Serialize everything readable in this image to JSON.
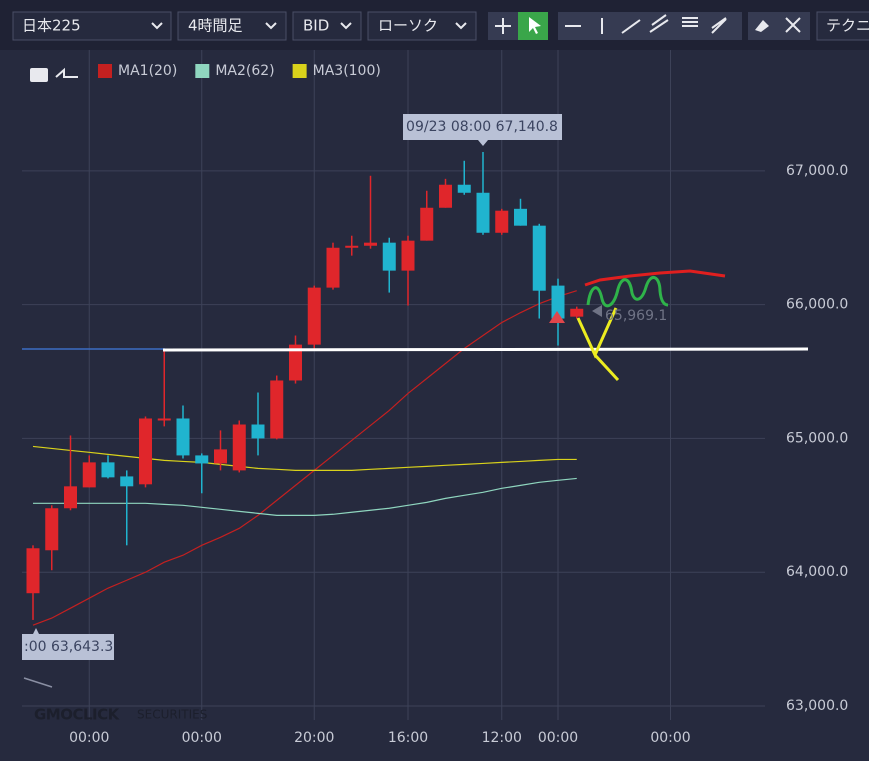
{
  "toolbar": {
    "symbol": "日本225",
    "timeframe": "4時間足",
    "price_type": "BID",
    "chart_style": "ローソク",
    "technical": "テクニ"
  },
  "watermark": {
    "brand": "GMOCLICK",
    "sub": "SECURITIES"
  },
  "chart_data": {
    "type": "candlestick",
    "categories": [
      null,
      null,
      null,
      "00:00",
      null,
      null,
      null,
      null,
      null,
      "00:00",
      null,
      null,
      null,
      null,
      null,
      "20:00",
      null,
      null,
      null,
      null,
      "16:00",
      null,
      null,
      null,
      null,
      "12:00",
      null,
      null,
      "00:00",
      null,
      null,
      null,
      null,
      null,
      "00:00",
      null,
      null,
      null
    ],
    "ohlc": {
      "up_color": "#e0262b",
      "down_color": "#20b4cf",
      "open": [
        63843,
        64164,
        64478,
        64634,
        64821,
        64716,
        64657,
        65134,
        65149,
        64873,
        64813,
        64761,
        65104,
        65000,
        65433,
        65701,
        66127,
        66425,
        66440,
        66463,
        66254,
        66478,
        66724,
        66896,
        66836,
        66537,
        66716,
        66590,
        66142,
        65910,
        null,
        null,
        null,
        null,
        null,
        null,
        null,
        null
      ],
      "high": [
        64201,
        64500,
        65022,
        64873,
        64873,
        64761,
        65164,
        65657,
        65246,
        64888,
        65060,
        65134,
        65343,
        65470,
        65769,
        66142,
        66463,
        66515,
        66963,
        66500,
        66515,
        66851,
        66940,
        67075,
        67140.8,
        66716,
        66791,
        66604,
        66194,
        65985,
        null,
        null,
        null,
        null,
        null,
        null,
        null,
        null
      ],
      "low": [
        63643.3,
        64015,
        64463,
        64634,
        64701,
        64201,
        64634,
        65090,
        64850,
        64590,
        64761,
        64746,
        64873,
        64993,
        65410,
        65657,
        66112,
        66366,
        66418,
        66090,
        65993,
        66478,
        66724,
        66821,
        66522,
        66522,
        66590,
        65896,
        65694,
        65896,
        null,
        null,
        null,
        null,
        null,
        null,
        null,
        null
      ],
      "close": [
        64179,
        64478,
        64642,
        64821,
        64709,
        64642,
        65149,
        65149,
        64873,
        64813,
        64918,
        65104,
        65000,
        65433,
        65701,
        66127,
        66425,
        66440,
        66463,
        66254,
        66478,
        66724,
        66896,
        66836,
        66537,
        66702,
        66590,
        66104,
        65896,
        65969.1,
        null,
        null,
        null,
        null,
        null,
        null,
        null,
        null
      ]
    },
    "series": [
      {
        "name": "MA1(20)",
        "color": "#c42020",
        "values": [
          63604,
          63657,
          63731,
          63806,
          63881,
          63940,
          64000,
          64075,
          64127,
          64201,
          64261,
          64328,
          64425,
          64537,
          64649,
          64761,
          64873,
          64985,
          65097,
          65209,
          65336,
          65448,
          65560,
          65672,
          65769,
          65866,
          65940,
          66007,
          66060,
          66104,
          null,
          null,
          null,
          null,
          null,
          null,
          null,
          null
        ]
      },
      {
        "name": "MA2(62)",
        "color": "#8fd6bf",
        "values": [
          64515,
          64515,
          64515,
          64515,
          64515,
          64515,
          64515,
          64507,
          64500,
          64485,
          64470,
          64455,
          64440,
          64425,
          64425,
          64425,
          64433,
          64448,
          64463,
          64478,
          64500,
          64522,
          64552,
          64575,
          64597,
          64627,
          64649,
          64672,
          64687,
          64701,
          null,
          null,
          null,
          null,
          null,
          null,
          null,
          null
        ]
      },
      {
        "name": "MA3(100)",
        "color": "#d9d21b",
        "values": [
          64940,
          64925,
          64910,
          64896,
          64881,
          64866,
          64851,
          64836,
          64828,
          64821,
          64806,
          64791,
          64776,
          64769,
          64761,
          64761,
          64761,
          64761,
          64769,
          64776,
          64784,
          64791,
          64799,
          64806,
          64813,
          64821,
          64828,
          64836,
          64843,
          64843,
          null,
          null,
          null,
          null,
          null,
          null,
          null,
          null
        ]
      }
    ],
    "ylim": [
      62900,
      67900
    ],
    "yticks": [
      {
        "value": 63000,
        "label": "63,000.0"
      },
      {
        "value": 64000,
        "label": "64,000.0"
      },
      {
        "value": 65000,
        "label": "65,000.0"
      },
      {
        "value": 66000,
        "label": "66,000.0"
      },
      {
        "value": 67000,
        "label": "67,000.0"
      }
    ],
    "grid": true,
    "annotations": [
      "09/23 08:00 67,140.8",
      ":00 63,643.3",
      "65,969.1"
    ]
  }
}
